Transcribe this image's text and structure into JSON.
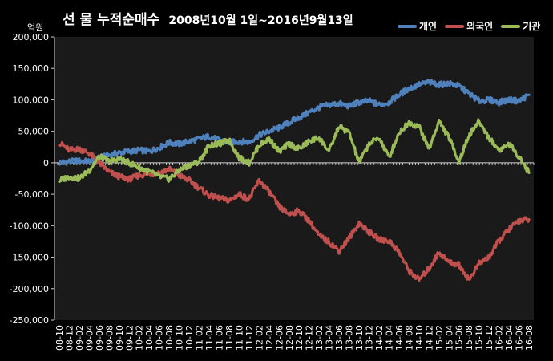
{
  "title": {
    "main": "선 물 누적순매수",
    "period": "2008년10월 1일~2016년9월13일"
  },
  "unit_label": "억원",
  "chart_data": {
    "type": "line",
    "title": "선 물 누적순매수 2008년10월 1일~2016년9월13일",
    "ylabel": "억원",
    "xlabel": "",
    "ylim": [
      -250000,
      200000
    ],
    "yticks": [
      200000,
      150000,
      100000,
      50000,
      0,
      -50000,
      -100000,
      -150000,
      -200000,
      -250000
    ],
    "ytick_labels": [
      "200,000",
      "150,000",
      "100,000",
      "50,000",
      "0",
      "-50,000",
      "-100,000",
      "-150,000",
      "-200,000",
      "-250,000"
    ],
    "categories": [
      "08-10",
      "08-12",
      "09-02",
      "09-04",
      "09-06",
      "09-08",
      "09-10",
      "09-12",
      "10-02",
      "10-04",
      "10-06",
      "10-08",
      "10-10",
      "10-12",
      "11-02",
      "11-04",
      "11-06",
      "11-08",
      "11-10",
      "11-12",
      "12-02",
      "12-04",
      "12-06",
      "12-08",
      "12-10",
      "12-12",
      "13-02",
      "13-04",
      "13-06",
      "13-08",
      "13-10",
      "13-12",
      "14-02",
      "14-04",
      "14-06",
      "14-08",
      "14-10",
      "14-12",
      "15-02",
      "15-04",
      "15-06",
      "15-08",
      "15-10",
      "15-12",
      "16-02",
      "16-04",
      "16-06",
      "16-08"
    ],
    "legend_position": "top-right",
    "grid": false,
    "series": [
      {
        "name": "개인",
        "color": "#4F81BD",
        "values": [
          0,
          2000,
          3000,
          2000,
          8000,
          12000,
          16000,
          18000,
          20000,
          18000,
          24000,
          32000,
          30000,
          34000,
          38000,
          42000,
          36000,
          32000,
          34000,
          33000,
          44000,
          50000,
          56000,
          64000,
          72000,
          80000,
          88000,
          92000,
          94000,
          90000,
          96000,
          98000,
          92000,
          96000,
          108000,
          118000,
          124000,
          128000,
          124000,
          126000,
          122000,
          110000,
          98000,
          100000,
          96000,
          100000,
          98000,
          108000
        ]
      },
      {
        "name": "외국인",
        "color": "#C0504D",
        "values": [
          32000,
          20000,
          22000,
          15000,
          0,
          -15000,
          -22000,
          -26000,
          -20000,
          -18000,
          -16000,
          -10000,
          -20000,
          -28000,
          -40000,
          -52000,
          -56000,
          -60000,
          -50000,
          -58000,
          -28000,
          -46000,
          -70000,
          -82000,
          -76000,
          -92000,
          -116000,
          -126000,
          -140000,
          -120000,
          -96000,
          -110000,
          -122000,
          -124000,
          -142000,
          -172000,
          -186000,
          -168000,
          -142000,
          -158000,
          -162000,
          -186000,
          -160000,
          -150000,
          -124000,
          -106000,
          -92000,
          -90000
        ]
      },
      {
        "name": "기관",
        "color": "#9BBB59",
        "values": [
          -28000,
          -22000,
          -25000,
          -12000,
          10000,
          2000,
          6000,
          0,
          -8000,
          -14000,
          -22000,
          -26000,
          -12000,
          -4000,
          2000,
          28000,
          30000,
          36000,
          8000,
          0,
          28000,
          38000,
          18000,
          30000,
          22000,
          34000,
          40000,
          18000,
          58000,
          48000,
          0,
          30000,
          40000,
          8000,
          48000,
          64000,
          58000,
          22000,
          66000,
          40000,
          2000,
          44000,
          66000,
          40000,
          20000,
          30000,
          10000,
          -16000
        ]
      }
    ]
  }
}
